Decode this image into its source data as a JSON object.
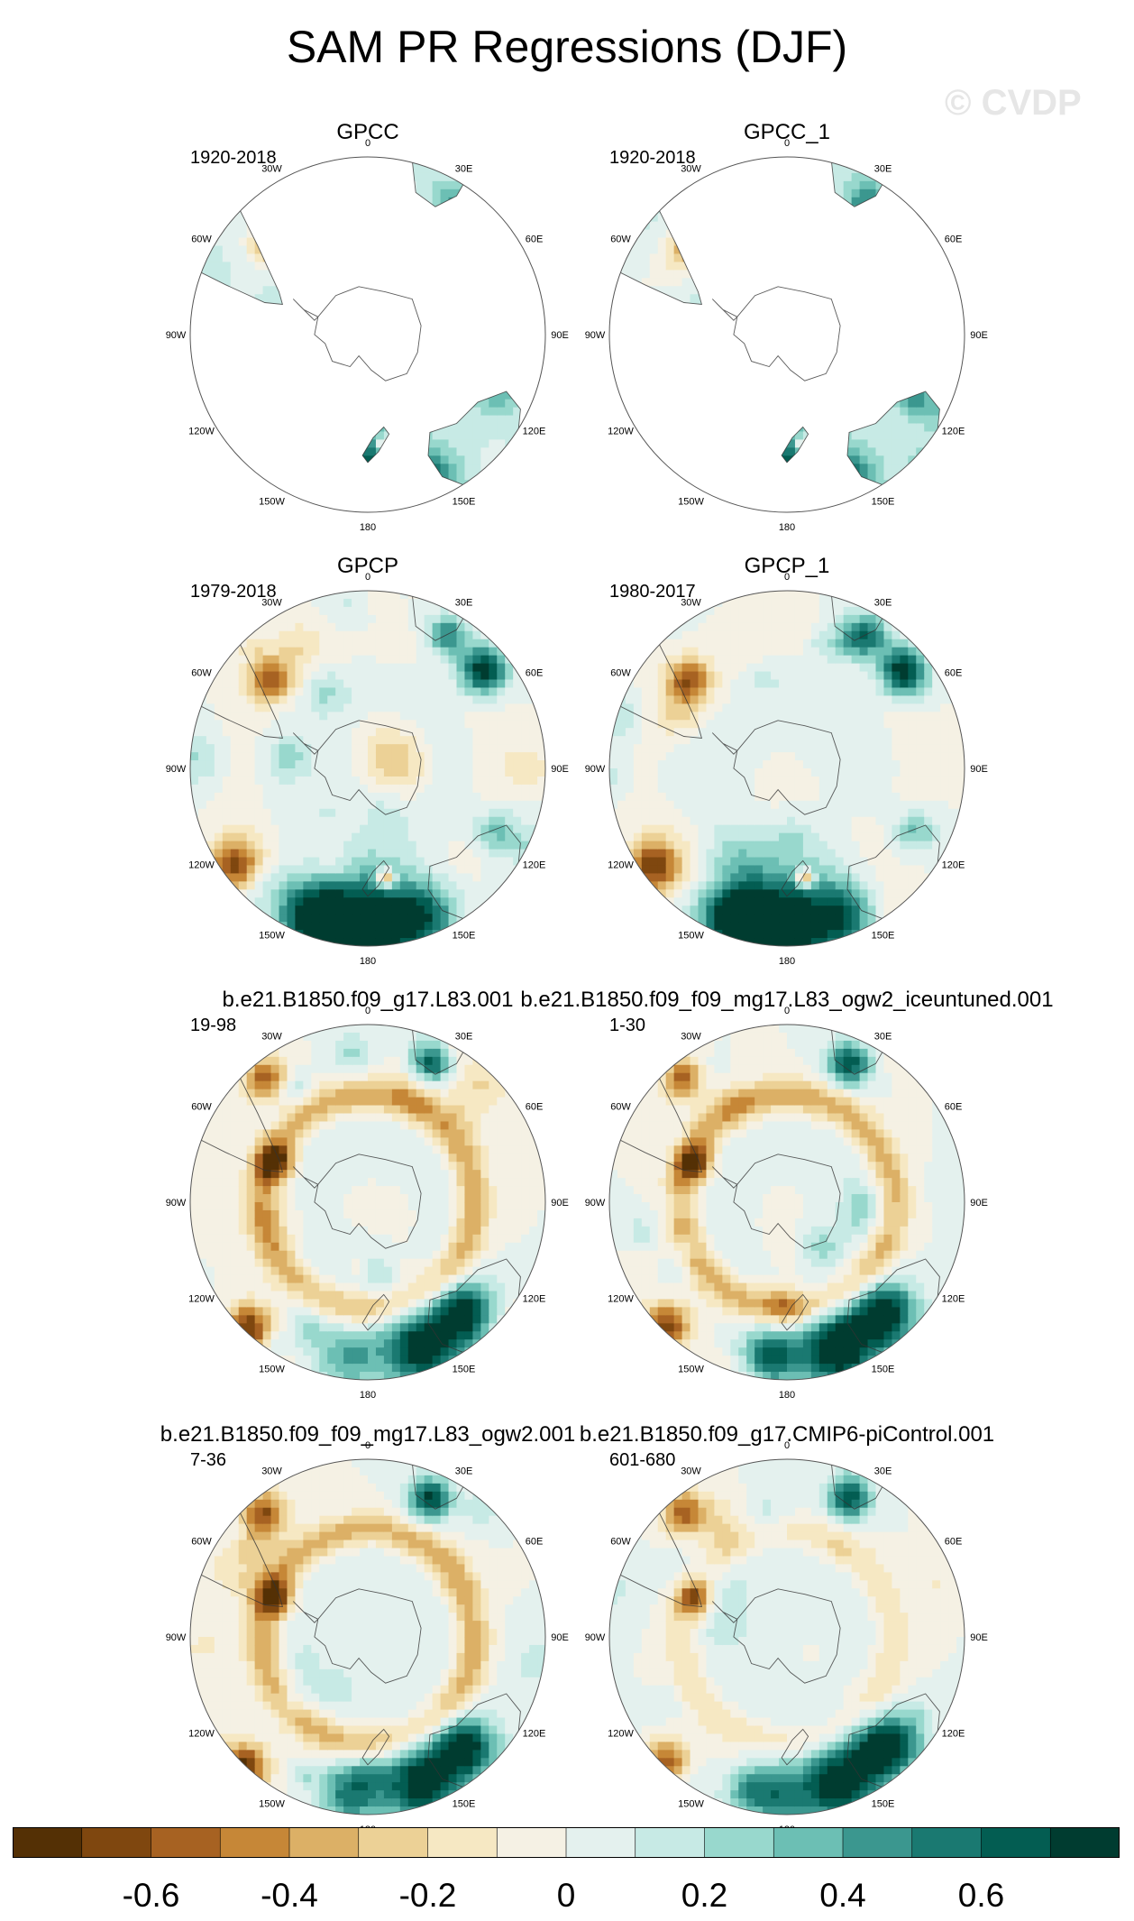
{
  "title": "SAM PR Regressions (DJF)",
  "watermark": "© CVDP",
  "longitude_labels": [
    "0",
    "30E",
    "60E",
    "90E",
    "120E",
    "150E",
    "180",
    "150W",
    "120W",
    "90W",
    "60W",
    "30W"
  ],
  "panels": [
    {
      "title": "GPCC",
      "period": "1920-2018",
      "coverage": "land",
      "pattern": "obs-land"
    },
    {
      "title": "GPCC_1",
      "period": "1920-2018",
      "coverage": "land",
      "pattern": "obs-land"
    },
    {
      "title": "GPCP",
      "period": "1979-2018",
      "coverage": "full",
      "pattern": "obs"
    },
    {
      "title": "GPCP_1",
      "period": "1980-2017",
      "coverage": "full",
      "pattern": "obs"
    },
    {
      "title": "b.e21.B1850.f09_g17.L83.001",
      "period": "19-98",
      "coverage": "full",
      "pattern": "model-strong"
    },
    {
      "title": "b.e21.B1850.f09_f09_mg17.L83_ogw2_iceuntuned.001",
      "period": "1-30",
      "coverage": "full",
      "pattern": "model-strong"
    },
    {
      "title": "b.e21.B1850.f09_f09_mg17.L83_ogw2.001",
      "period": "7-36",
      "coverage": "full",
      "pattern": "model-strong"
    },
    {
      "title": "b.e21.B1850.f09_g17.CMIP6-piControl.001",
      "period": "601-680",
      "coverage": "full",
      "pattern": "model-weak"
    }
  ],
  "colorbar": {
    "ticks": [
      "-0.6",
      "-0.4",
      "-0.2",
      "0",
      "0.2",
      "0.4",
      "0.6"
    ],
    "colors": [
      "#543005",
      "#7f470f",
      "#a76222",
      "#c68737",
      "#dcb066",
      "#ecd196",
      "#f6e8c3",
      "#f5f1e4",
      "#e4f1ee",
      "#c7eae5",
      "#98d8cd",
      "#6cbfb4",
      "#3b978f",
      "#1a7971",
      "#035d52",
      "#003c30"
    ]
  }
}
